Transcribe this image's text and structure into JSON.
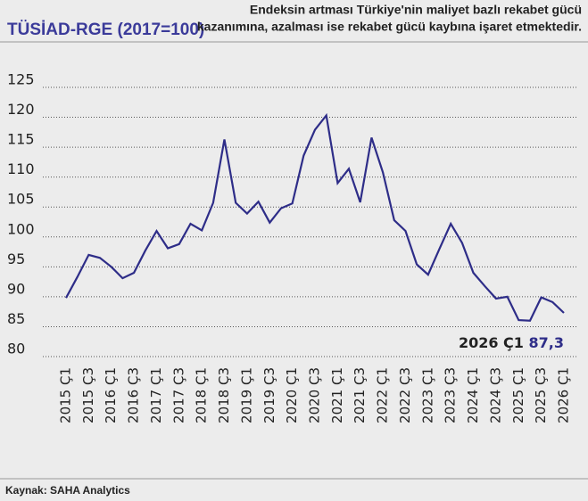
{
  "chart_data": {
    "type": "line",
    "title": "TÜSİAD-RGE (2017=100)",
    "subtitle": [
      "Endeksin artması Türkiye'nin maliyet bazlı rekabet gücü",
      "kazanımına, azalması ise rekabet gücü kaybına işaret etmektedir."
    ],
    "source": "Kaynak: SAHA Analytics",
    "categories": [
      "2015 Ç1",
      null,
      "2015 Ç3",
      null,
      "2016 Ç1",
      null,
      "2016 Ç3",
      null,
      "2017 Ç1",
      null,
      "2017 Ç3",
      null,
      "2018 Ç1",
      null,
      "2018 Ç3",
      null,
      "2019 Ç1",
      null,
      "2019 Ç3",
      null,
      "2020 Ç1",
      null,
      "2020 Ç3",
      null,
      "2021 Ç1",
      null,
      "2021 Ç3",
      null,
      "2022 Ç1",
      null,
      "2022 Ç3",
      null,
      "2023 Ç1",
      null,
      "2023 Ç3",
      null,
      "2024 Ç1",
      null,
      "2024 Ç3",
      null,
      "2025 Ç1",
      null,
      "2025 Ç3",
      null,
      "2026 Ç1"
    ],
    "series": [
      {
        "name": "TÜSİAD-RGE",
        "color": "#2e2d88",
        "values": [
          89.8,
          93.3,
          97,
          96.5,
          95,
          93.1,
          94,
          97.7,
          101,
          98.1,
          98.8,
          102.2,
          101.1,
          105.7,
          116.3,
          105.7,
          103.9,
          105.9,
          102.4,
          104.8,
          105.6,
          113.6,
          117.9,
          120.3,
          109,
          111.4,
          105.8,
          116.6,
          110.8,
          102.8,
          101,
          95.4,
          93.7,
          98,
          102.2,
          99,
          94,
          91.8,
          89.7,
          90,
          86.1,
          86,
          89.9,
          89.1,
          87.3
        ],
        "value_labels": [
          null,
          null,
          null,
          null,
          null,
          null,
          null,
          null,
          null,
          null,
          null,
          null,
          null,
          null,
          null,
          null,
          null,
          null,
          null,
          null,
          null,
          null,
          null,
          null,
          null,
          null,
          null,
          null,
          null,
          null,
          null,
          null,
          null,
          null,
          null,
          null,
          null,
          null,
          null,
          null,
          null,
          null,
          null,
          null,
          "87,3"
        ]
      }
    ],
    "ylim": [
      80,
      125
    ],
    "yticks": [
      80,
      85,
      90,
      95,
      100,
      105,
      110,
      115,
      120,
      125
    ],
    "grid": true
  }
}
